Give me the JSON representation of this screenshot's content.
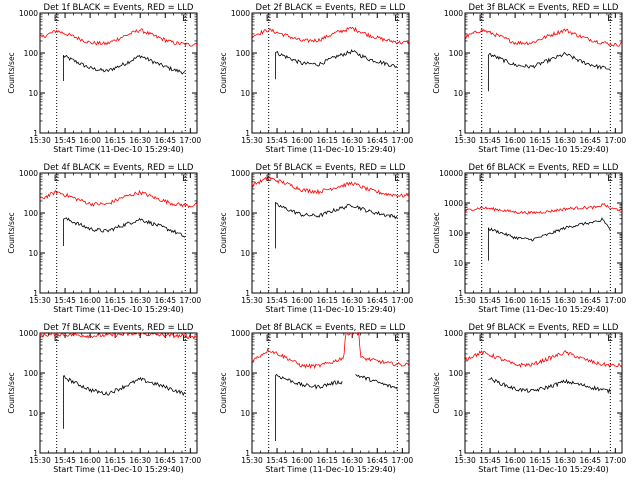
{
  "figure": {
    "xlabel": "Start Time (11-Dec-10 15:29:40)",
    "ylabel": "Counts/sec",
    "xticks": [
      "15:30",
      "15:45",
      "16:00",
      "16:15",
      "16:30",
      "16:45",
      "17:00"
    ],
    "flag_labels": [
      "E",
      "E"
    ],
    "colors": {
      "events": "#000000",
      "lld": "#ff0000",
      "axes": "#000000",
      "background": "#ffffff"
    }
  },
  "chart_data": [
    {
      "type": "line",
      "title": "Det 1f BLACK = Events, RED = LLD",
      "ylim": [
        1,
        1000
      ],
      "yscale": "log",
      "xlim": [
        "15:30",
        "17:04"
      ],
      "yticks": [
        "1",
        "10",
        "100",
        "1000"
      ],
      "dotted_markers": [
        "15:40",
        "16:57"
      ],
      "series": [
        {
          "name": "Events",
          "x": [
            "15:44",
            "15:50",
            "16:00",
            "16:10",
            "16:20",
            "16:30",
            "16:40",
            "16:50",
            "16:57"
          ],
          "values": [
            85,
            65,
            42,
            35,
            52,
            85,
            55,
            38,
            32
          ],
          "start_x": "15:44",
          "start_value": 20
        },
        {
          "name": "LLD",
          "x": [
            "15:30",
            "15:40",
            "15:50",
            "16:00",
            "16:10",
            "16:20",
            "16:30",
            "16:40",
            "16:50",
            "17:00",
            "17:04"
          ],
          "values": [
            240,
            360,
            260,
            180,
            170,
            260,
            380,
            250,
            180,
            160,
            175
          ]
        }
      ]
    },
    {
      "type": "line",
      "title": "Det 2f BLACK = Events, RED = LLD",
      "ylim": [
        1,
        1000
      ],
      "yscale": "log",
      "xlim": [
        "15:30",
        "17:04"
      ],
      "yticks": [
        "1",
        "10",
        "100",
        "1000"
      ],
      "dotted_markers": [
        "15:40",
        "16:57"
      ],
      "series": [
        {
          "name": "Events",
          "x": [
            "15:44",
            "15:50",
            "16:00",
            "16:10",
            "16:20",
            "16:30",
            "16:40",
            "16:50",
            "16:57"
          ],
          "values": [
            105,
            82,
            55,
            52,
            80,
            110,
            70,
            55,
            45
          ],
          "start_x": "15:44",
          "start_value": 22
        },
        {
          "name": "LLD",
          "x": [
            "15:30",
            "15:40",
            "15:50",
            "16:00",
            "16:10",
            "16:20",
            "16:30",
            "16:40",
            "16:50",
            "17:00",
            "17:04"
          ],
          "values": [
            270,
            380,
            280,
            200,
            210,
            320,
            420,
            280,
            210,
            180,
            190
          ]
        }
      ]
    },
    {
      "type": "line",
      "title": "Det 3f BLACK = Events, RED = LLD",
      "ylim": [
        1,
        1000
      ],
      "yscale": "log",
      "xlim": [
        "15:30",
        "17:04"
      ],
      "yticks": [
        "1",
        "10",
        "100",
        "1000"
      ],
      "dotted_markers": [
        "15:40",
        "16:57"
      ],
      "series": [
        {
          "name": "Events",
          "x": [
            "15:44",
            "15:50",
            "16:00",
            "16:10",
            "16:20",
            "16:30",
            "16:40",
            "16:50",
            "16:57"
          ],
          "values": [
            95,
            75,
            50,
            45,
            65,
            95,
            60,
            45,
            40
          ],
          "start_x": "15:44",
          "start_value": 11
        },
        {
          "name": "LLD",
          "x": [
            "15:30",
            "15:40",
            "15:50",
            "16:00",
            "16:10",
            "16:20",
            "16:30",
            "16:40",
            "16:50",
            "17:00",
            "17:04"
          ],
          "values": [
            250,
            380,
            270,
            180,
            180,
            270,
            380,
            250,
            190,
            160,
            170
          ]
        }
      ]
    },
    {
      "type": "line",
      "title": "Det 4f BLACK = Events, RED = LLD",
      "ylim": [
        1,
        1000
      ],
      "yscale": "log",
      "xlim": [
        "15:30",
        "17:04"
      ],
      "yticks": [
        "1",
        "10",
        "100",
        "1000"
      ],
      "dotted_markers": [
        "15:40",
        "16:57"
      ],
      "series": [
        {
          "name": "Events",
          "x": [
            "15:44",
            "15:50",
            "16:00",
            "16:10",
            "16:20",
            "16:30",
            "16:40",
            "16:50",
            "16:57"
          ],
          "values": [
            75,
            60,
            40,
            35,
            50,
            70,
            50,
            35,
            25
          ],
          "start_x": "15:44",
          "start_value": 15
        },
        {
          "name": "LLD",
          "x": [
            "15:30",
            "15:40",
            "15:50",
            "16:00",
            "16:10",
            "16:20",
            "16:30",
            "16:40",
            "16:50",
            "17:00",
            "17:04"
          ],
          "values": [
            220,
            340,
            240,
            170,
            165,
            250,
            330,
            230,
            170,
            150,
            165
          ]
        }
      ]
    },
    {
      "type": "line",
      "title": "Det 5f BLACK = Events, RED = LLD",
      "ylim": [
        1,
        1000
      ],
      "yscale": "log",
      "xlim": [
        "15:30",
        "17:04"
      ],
      "yticks": [
        "1",
        "10",
        "100",
        "1000"
      ],
      "dotted_markers": [
        "15:40",
        "16:57"
      ],
      "series": [
        {
          "name": "Events",
          "x": [
            "15:44",
            "15:50",
            "16:00",
            "16:10",
            "16:20",
            "16:30",
            "16:40",
            "16:50",
            "16:57"
          ],
          "values": [
            165,
            130,
            90,
            85,
            120,
            160,
            110,
            90,
            80
          ],
          "start_x": "15:44",
          "start_value": 13
        },
        {
          "name": "LLD",
          "x": [
            "15:30",
            "15:40",
            "15:50",
            "16:00",
            "16:10",
            "16:20",
            "16:30",
            "16:40",
            "16:50",
            "17:00",
            "17:04"
          ],
          "values": [
            500,
            750,
            560,
            380,
            340,
            440,
            560,
            380,
            300,
            270,
            280
          ]
        }
      ]
    },
    {
      "type": "line",
      "title": "Det 6f BLACK = Events, RED = LLD",
      "ylim": [
        1,
        10000
      ],
      "yscale": "log",
      "xlim": [
        "15:30",
        "17:04"
      ],
      "yticks": [
        "1",
        "10",
        "100",
        "1000",
        "10000"
      ],
      "dotted_markers": [
        "15:40",
        "16:57"
      ],
      "series": [
        {
          "name": "Events",
          "x": [
            "15:44",
            "15:50",
            "16:00",
            "16:10",
            "16:20",
            "16:30",
            "16:40",
            "16:51",
            "16:52",
            "16:57"
          ],
          "values": [
            140,
            110,
            70,
            60,
            90,
            150,
            200,
            240,
            310,
            130
          ],
          "start_x": "15:44",
          "start_value": 12
        },
        {
          "name": "LLD",
          "x": [
            "15:30",
            "15:40",
            "15:50",
            "16:00",
            "16:10",
            "16:20",
            "16:30",
            "16:40",
            "16:51",
            "16:52",
            "16:57",
            "17:04"
          ],
          "values": [
            560,
            700,
            600,
            500,
            470,
            520,
            640,
            700,
            720,
            1000,
            650,
            600
          ]
        }
      ]
    },
    {
      "type": "line",
      "title": "Det 7f BLACK = Events, RED = LLD",
      "ylim": [
        1,
        1000
      ],
      "yscale": "log",
      "xlim": [
        "15:30",
        "17:04"
      ],
      "yticks": [
        "1",
        "10",
        "100",
        "1000"
      ],
      "dotted_markers": [
        "15:40",
        "16:57"
      ],
      "series": [
        {
          "name": "Events",
          "x": [
            "15:44",
            "15:50",
            "16:00",
            "16:10",
            "16:20",
            "16:30",
            "16:40",
            "16:50",
            "16:57"
          ],
          "values": [
            80,
            60,
            38,
            30,
            45,
            70,
            52,
            38,
            30
          ],
          "start_x": "15:44",
          "start_value": 4
        },
        {
          "name": "LLD",
          "x": [
            "15:30",
            "15:40",
            "15:50",
            "16:00",
            "16:10",
            "16:20",
            "16:30",
            "16:40",
            "16:50",
            "17:00",
            "17:04"
          ],
          "values": [
            880,
            930,
            900,
            850,
            880,
            920,
            950,
            900,
            860,
            820,
            800
          ]
        }
      ]
    },
    {
      "type": "line",
      "title": "Det 8f BLACK = Events, RED = LLD",
      "ylim": [
        1,
        1000
      ],
      "yscale": "log",
      "xlim": [
        "15:30",
        "17:04"
      ],
      "yticks": [
        "1",
        "10",
        "100",
        "1000"
      ],
      "dotted_markers": [
        "15:40",
        "16:57"
      ],
      "series": [
        {
          "name": "Events",
          "x": [
            "15:44",
            "15:50",
            "16:00",
            "16:10",
            "16:20",
            "16:24"
          ],
          "values": [
            90,
            72,
            50,
            45,
            58,
            60
          ],
          "start_x": "15:44",
          "start_value": 2,
          "x2": [
            "16:32",
            "16:40",
            "16:50",
            "16:57"
          ],
          "values2": [
            90,
            70,
            50,
            42
          ]
        },
        {
          "name": "LLD",
          "x": [
            "15:30",
            "15:40",
            "15:50",
            "16:00",
            "16:10",
            "16:20",
            "16:25",
            "16:26",
            "16:34",
            "16:35",
            "16:40",
            "16:50",
            "17:00",
            "17:04"
          ],
          "values": [
            200,
            380,
            250,
            150,
            150,
            200,
            250,
            1000,
            1000,
            240,
            220,
            180,
            160,
            165
          ]
        }
      ]
    },
    {
      "type": "line",
      "title": "Det 9f BLACK = Events, RED = LLD",
      "ylim": [
        1,
        1000
      ],
      "yscale": "log",
      "xlim": [
        "15:30",
        "17:04"
      ],
      "yticks": [
        "1",
        "10",
        "100",
        "1000"
      ],
      "dotted_markers": [
        "15:40",
        "16:57"
      ],
      "series": [
        {
          "name": "Events",
          "x": [
            "15:44",
            "15:50",
            "16:00",
            "16:10",
            "16:20",
            "16:30",
            "16:40",
            "16:50",
            "16:57"
          ],
          "values": [
            75,
            58,
            40,
            35,
            45,
            62,
            50,
            40,
            35
          ]
        },
        {
          "name": "LLD",
          "x": [
            "15:30",
            "15:40",
            "15:50",
            "16:00",
            "16:10",
            "16:20",
            "16:30",
            "16:40",
            "16:50",
            "17:00",
            "17:04"
          ],
          "values": [
            220,
            330,
            240,
            160,
            160,
            230,
            330,
            230,
            170,
            150,
            160
          ]
        }
      ]
    }
  ]
}
